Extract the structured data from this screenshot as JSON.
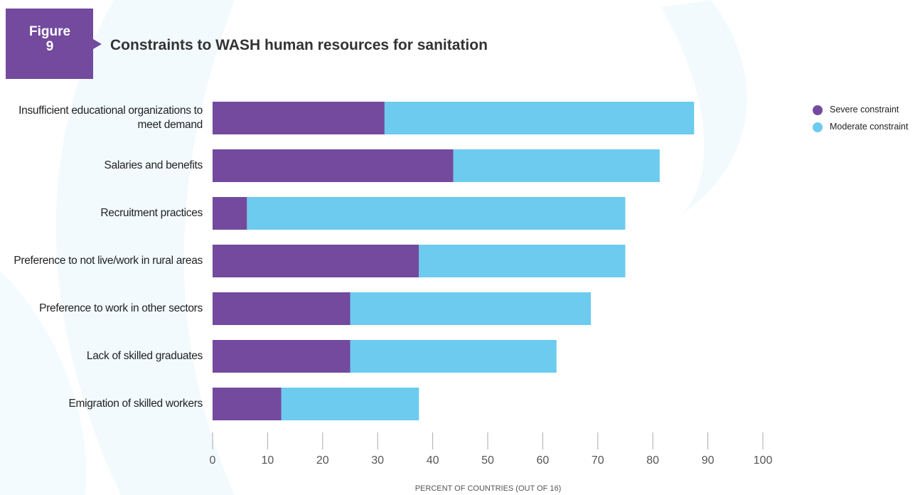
{
  "chart_data": {
    "type": "stacked-barh",
    "figure_label": "Figure 9",
    "title": "Constraints to WASH human resources for sanitation",
    "x_label": "PERCENT OF COUNTRIES (OUT OF 16)",
    "categories": [
      "Insufficient educational organizations to meet demand",
      "Salaries and benefits",
      "Recruitment practices",
      "Preference to not live/work in rural areas",
      "Preference to work in other sectors",
      "Lack of skilled graduates",
      "Emigration of skilled workers"
    ],
    "series": [
      {
        "name": "Severe constraint",
        "color": "#734a9e",
        "values": [
          31.25,
          43.75,
          6.25,
          37.5,
          25,
          25,
          12.5
        ]
      },
      {
        "name": "Moderate constraint",
        "color": "#6ccbee",
        "values": [
          56.25,
          37.5,
          68.75,
          37.5,
          43.75,
          37.5,
          25
        ]
      }
    ],
    "xlim": [
      0,
      100
    ],
    "xticks": [
      0,
      10,
      20,
      30,
      40,
      50,
      60,
      70,
      80,
      90,
      100
    ],
    "legend": "top-right"
  }
}
